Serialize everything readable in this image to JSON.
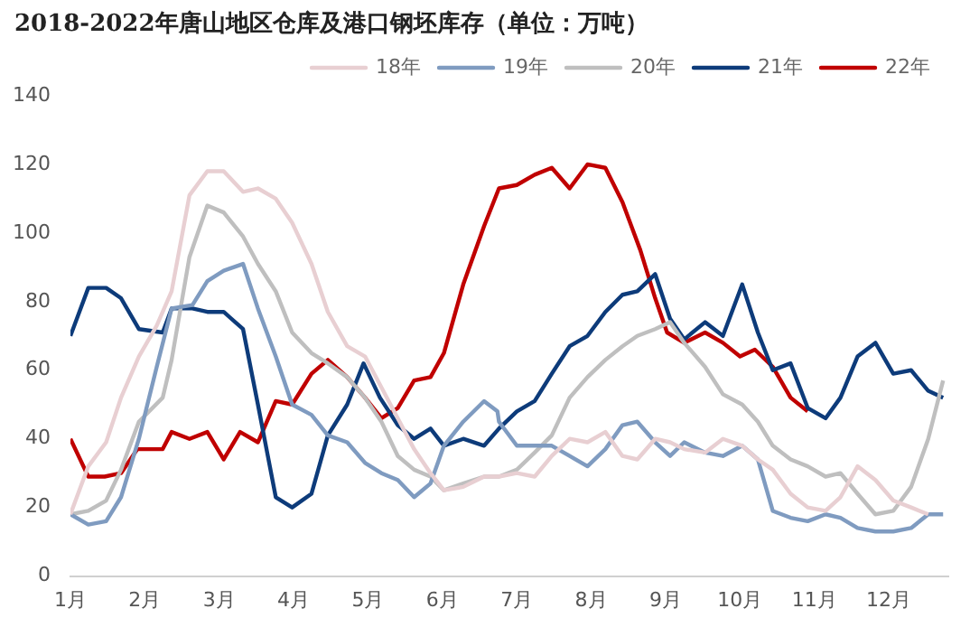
{
  "chart_data": {
    "type": "line",
    "title": "2018-2022年唐山地区仓库及港口钢坯库存（单位：万吨）",
    "xlim": [
      1,
      12.8
    ],
    "xticks": [
      {
        "value": 1,
        "label": "1月"
      },
      {
        "value": 2,
        "label": "2月"
      },
      {
        "value": 3,
        "label": "3月"
      },
      {
        "value": 4,
        "label": "4月"
      },
      {
        "value": 5,
        "label": "5月"
      },
      {
        "value": 6,
        "label": "6月"
      },
      {
        "value": 7,
        "label": "7月"
      },
      {
        "value": 8,
        "label": "8月"
      },
      {
        "value": 9,
        "label": "9月"
      },
      {
        "value": 10,
        "label": "10月"
      },
      {
        "value": 11,
        "label": "11月"
      },
      {
        "value": 12,
        "label": "12月"
      }
    ],
    "ylim": [
      0,
      140
    ],
    "yticks": [
      0,
      20,
      40,
      60,
      80,
      100,
      120,
      140
    ],
    "grid": false,
    "legend": "top right",
    "marker": "none",
    "line_style": "solid",
    "series": [
      {
        "name": "18年",
        "color": "#e8cfd2",
        "x": [
          1.0,
          1.24,
          1.48,
          1.68,
          1.92,
          2.16,
          2.36,
          2.6,
          2.84,
          3.06,
          3.32,
          3.52,
          3.76,
          3.98,
          4.24,
          4.46,
          4.72,
          4.96,
          5.18,
          5.4,
          5.62,
          5.84,
          6.02,
          6.28,
          6.56,
          6.76,
          7.0,
          7.24,
          7.47,
          7.71,
          7.95,
          8.19,
          8.42,
          8.62,
          8.86,
          9.06,
          9.25,
          9.53,
          9.77,
          10.03,
          10.24,
          10.44,
          10.68,
          10.91,
          11.15,
          11.35,
          11.58,
          11.82,
          12.06,
          12.3,
          12.53
        ],
        "values": [
          18,
          32,
          39,
          52,
          64,
          73,
          83,
          111,
          118,
          118,
          112,
          113,
          110,
          103,
          91,
          77,
          67,
          64,
          55,
          46,
          37,
          30,
          25,
          26,
          29,
          29,
          30,
          29,
          35,
          40,
          39,
          42,
          35,
          34,
          40,
          39,
          37,
          36,
          40,
          38,
          34,
          31,
          24,
          20,
          19,
          23,
          32,
          28,
          22,
          20,
          18
        ]
      },
      {
        "name": "19年",
        "color": "#7f9bc0",
        "x": [
          1.0,
          1.24,
          1.48,
          1.68,
          1.92,
          2.16,
          2.36,
          2.64,
          2.84,
          3.06,
          3.32,
          3.52,
          3.76,
          3.98,
          4.24,
          4.46,
          4.72,
          4.96,
          5.18,
          5.4,
          5.62,
          5.84,
          6.02,
          6.28,
          6.56,
          6.74,
          6.76,
          7.0,
          7.24,
          7.47,
          7.71,
          7.95,
          8.19,
          8.42,
          8.62,
          8.86,
          9.06,
          9.25,
          9.53,
          9.77,
          10.03,
          10.24,
          10.44,
          10.68,
          10.91,
          11.15,
          11.35,
          11.58,
          11.82,
          12.06,
          12.3,
          12.53,
          12.73
        ],
        "values": [
          18,
          15,
          16,
          23,
          40,
          61,
          78,
          79,
          86,
          89,
          91,
          78,
          64,
          50,
          47,
          41,
          39,
          33,
          30,
          28,
          23,
          27,
          38,
          45,
          51,
          48,
          45,
          38,
          38,
          38,
          35,
          32,
          37,
          44,
          45,
          39,
          35,
          39,
          36,
          35,
          38,
          34,
          19,
          17,
          16,
          18,
          17,
          14,
          13,
          13,
          14,
          18,
          18
        ]
      },
      {
        "name": "20年",
        "color": "#bfbfbf",
        "x": [
          1.0,
          1.24,
          1.48,
          1.68,
          1.92,
          2.24,
          2.36,
          2.6,
          2.84,
          3.06,
          3.32,
          3.52,
          3.76,
          3.98,
          4.24,
          4.46,
          4.72,
          4.96,
          5.18,
          5.4,
          5.62,
          5.84,
          6.02,
          6.28,
          6.56,
          6.76,
          7.0,
          7.24,
          7.47,
          7.71,
          7.95,
          8.19,
          8.42,
          8.62,
          8.86,
          9.06,
          9.25,
          9.53,
          9.77,
          10.03,
          10.24,
          10.44,
          10.68,
          10.91,
          11.15,
          11.35,
          11.58,
          11.82,
          12.06,
          12.3,
          12.53,
          12.73
        ],
        "values": [
          18,
          19,
          22,
          31,
          45,
          52,
          63,
          93,
          108,
          106,
          99,
          91,
          83,
          71,
          65,
          62,
          58,
          52,
          45,
          35,
          31,
          29,
          25,
          27,
          29,
          29,
          31,
          36,
          41,
          52,
          58,
          63,
          67,
          70,
          72,
          74,
          68,
          61,
          53,
          50,
          45,
          38,
          34,
          32,
          29,
          30,
          24,
          18,
          19,
          26,
          40,
          57
        ]
      },
      {
        "name": "21年",
        "color": "#0d3b7a",
        "x": [
          1.0,
          1.24,
          1.48,
          1.68,
          1.92,
          2.24,
          2.36,
          2.64,
          2.84,
          3.06,
          3.32,
          3.52,
          3.76,
          3.98,
          4.24,
          4.46,
          4.72,
          4.94,
          5.16,
          5.4,
          5.62,
          5.84,
          6.02,
          6.28,
          6.56,
          6.76,
          7.0,
          7.24,
          7.47,
          7.71,
          7.95,
          8.19,
          8.42,
          8.62,
          8.86,
          9.06,
          9.25,
          9.53,
          9.77,
          10.03,
          10.24,
          10.44,
          10.68,
          10.91,
          11.15,
          11.35,
          11.58,
          11.82,
          12.06,
          12.3,
          12.53,
          12.73
        ],
        "values": [
          70,
          84,
          84,
          81,
          72,
          71,
          78,
          78,
          77,
          77,
          72,
          50,
          23,
          20,
          24,
          41,
          50,
          62,
          52,
          44,
          40,
          43,
          38,
          40,
          38,
          43,
          48,
          51,
          59,
          67,
          70,
          77,
          82,
          83,
          88,
          75,
          69,
          74,
          70,
          85,
          71,
          60,
          62,
          49,
          46,
          52,
          64,
          68,
          59,
          60,
          54,
          52
        ]
      },
      {
        "name": "22年",
        "color": "#c00000",
        "x": [
          1.0,
          1.24,
          1.46,
          1.68,
          1.9,
          2.24,
          2.36,
          2.6,
          2.84,
          3.06,
          3.28,
          3.52,
          3.76,
          3.98,
          4.24,
          4.46,
          4.72,
          4.96,
          5.18,
          5.4,
          5.62,
          5.84,
          6.02,
          6.28,
          6.56,
          6.76,
          7.0,
          7.24,
          7.47,
          7.71,
          7.95,
          8.19,
          8.42,
          8.66,
          8.86,
          9.02,
          9.25,
          9.53,
          9.77,
          10.0,
          10.2,
          10.44,
          10.68,
          10.91
        ],
        "values": [
          40,
          29,
          29,
          30,
          37,
          37,
          42,
          40,
          42,
          34,
          42,
          39,
          51,
          50,
          59,
          63,
          58,
          52,
          46,
          49,
          57,
          58,
          65,
          85,
          102,
          113,
          114,
          117,
          119,
          113,
          120,
          119,
          109,
          95,
          81,
          71,
          68,
          71,
          68,
          64,
          66,
          61,
          52,
          48
        ]
      }
    ]
  }
}
